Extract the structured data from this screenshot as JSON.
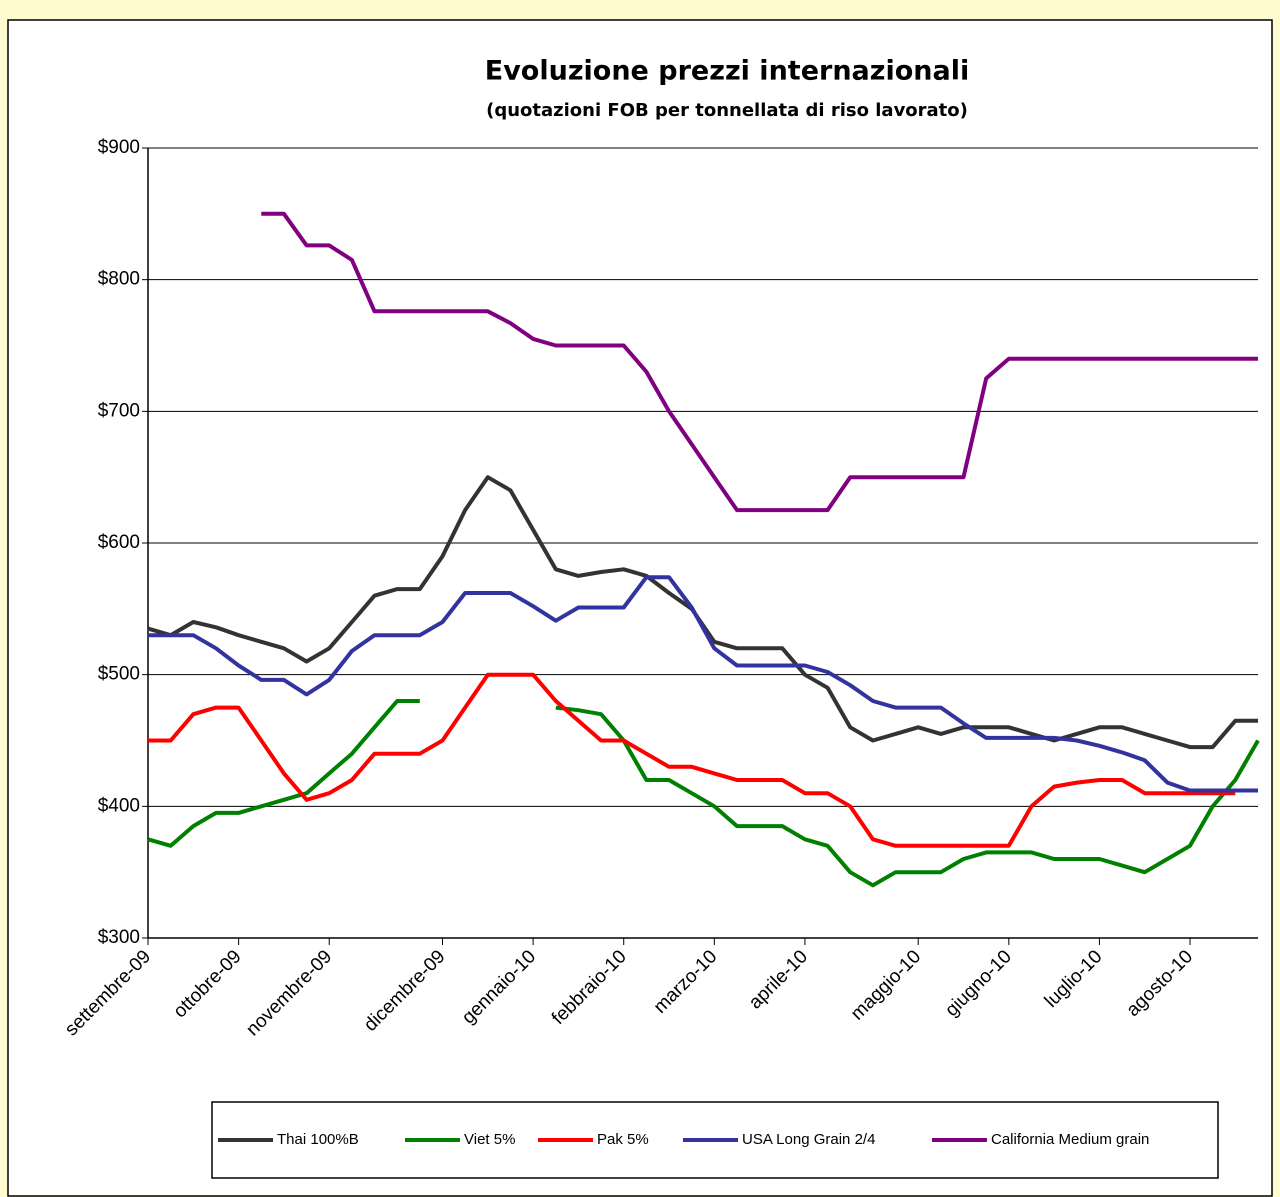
{
  "chart_data": {
    "type": "line",
    "title": "Evoluzione prezzi internazionali",
    "subtitle": "(quotazioni FOB per tonnellata di riso lavorato)",
    "categories": [
      "settembre-09",
      null,
      null,
      null,
      "ottobre-09",
      null,
      null,
      null,
      "novembre-09",
      null,
      null,
      null,
      null,
      "dicembre-09",
      null,
      null,
      null,
      "gennaio-10",
      null,
      null,
      null,
      "febbraio-10",
      null,
      null,
      null,
      "marzo-10",
      null,
      null,
      null,
      "aprile-10",
      null,
      null,
      null,
      null,
      "maggio-10",
      null,
      null,
      null,
      "giugno-10",
      null,
      null,
      null,
      "luglio-10",
      null,
      null,
      null,
      "agosto-10",
      null,
      null,
      null
    ],
    "series": [
      {
        "name": "Thai 100%B",
        "color": "#333333",
        "values": [
          535,
          530,
          540,
          536,
          530,
          525,
          520,
          510,
          520,
          540,
          560,
          565,
          565,
          590,
          625,
          650,
          640,
          610,
          580,
          575,
          578,
          580,
          575,
          562,
          550,
          525,
          520,
          520,
          520,
          500,
          490,
          460,
          450,
          455,
          460,
          455,
          460,
          460,
          460,
          455,
          450,
          455,
          460,
          460,
          455,
          450,
          445,
          445,
          465,
          465
        ]
      },
      {
        "name": "Viet 5%",
        "color": "#008000",
        "values": [
          375,
          370,
          385,
          395,
          395,
          400,
          405,
          410,
          425,
          440,
          460,
          480,
          480,
          null,
          null,
          null,
          null,
          null,
          475,
          473,
          470,
          450,
          420,
          420,
          410,
          400,
          385,
          385,
          385,
          375,
          370,
          350,
          340,
          350,
          350,
          350,
          360,
          365,
          365,
          365,
          360,
          360,
          360,
          355,
          350,
          360,
          370,
          400,
          420,
          450
        ]
      },
      {
        "name": "Pak 5%",
        "color": "#ff0000",
        "values": [
          450,
          450,
          470,
          475,
          475,
          450,
          425,
          405,
          410,
          420,
          440,
          440,
          440,
          450,
          475,
          500,
          500,
          500,
          480,
          465,
          450,
          450,
          440,
          430,
          430,
          425,
          420,
          420,
          420,
          410,
          410,
          400,
          375,
          370,
          370,
          370,
          370,
          370,
          370,
          400,
          415,
          418,
          420,
          420,
          410,
          410,
          410,
          410,
          410,
          null
        ]
      },
      {
        "name": "USA Long Grain 2/4",
        "color": "#3333a0",
        "values": [
          530,
          530,
          530,
          520,
          507,
          496,
          496,
          485,
          496,
          518,
          530,
          530,
          530,
          540,
          562,
          562,
          562,
          552,
          541,
          551,
          551,
          551,
          574,
          574,
          551,
          520,
          507,
          507,
          507,
          507,
          502,
          492,
          480,
          475,
          475,
          475,
          463,
          452,
          452,
          452,
          452,
          450,
          446,
          441,
          435,
          418,
          412,
          412,
          412,
          412
        ]
      },
      {
        "name": "California Medium grain",
        "color": "#800080",
        "values": [
          null,
          null,
          null,
          null,
          null,
          850,
          850,
          826,
          826,
          815,
          776,
          776,
          776,
          776,
          776,
          776,
          767,
          755,
          750,
          750,
          750,
          750,
          730,
          700,
          675,
          650,
          625,
          625,
          625,
          625,
          625,
          650,
          650,
          650,
          650,
          650,
          650,
          725,
          740,
          740,
          740,
          740,
          740,
          740,
          740,
          740,
          740,
          740,
          740,
          740
        ]
      }
    ],
    "ylim": [
      300,
      900
    ],
    "yticks": [
      {
        "value": 300,
        "label": "$300"
      },
      {
        "value": 400,
        "label": "$400"
      },
      {
        "value": 500,
        "label": "$500"
      },
      {
        "value": 600,
        "label": "$600"
      },
      {
        "value": 700,
        "label": "$700"
      },
      {
        "value": 800,
        "label": "$800"
      },
      {
        "value": 900,
        "label": "$900"
      }
    ],
    "grid": true,
    "legend": "bottom"
  }
}
